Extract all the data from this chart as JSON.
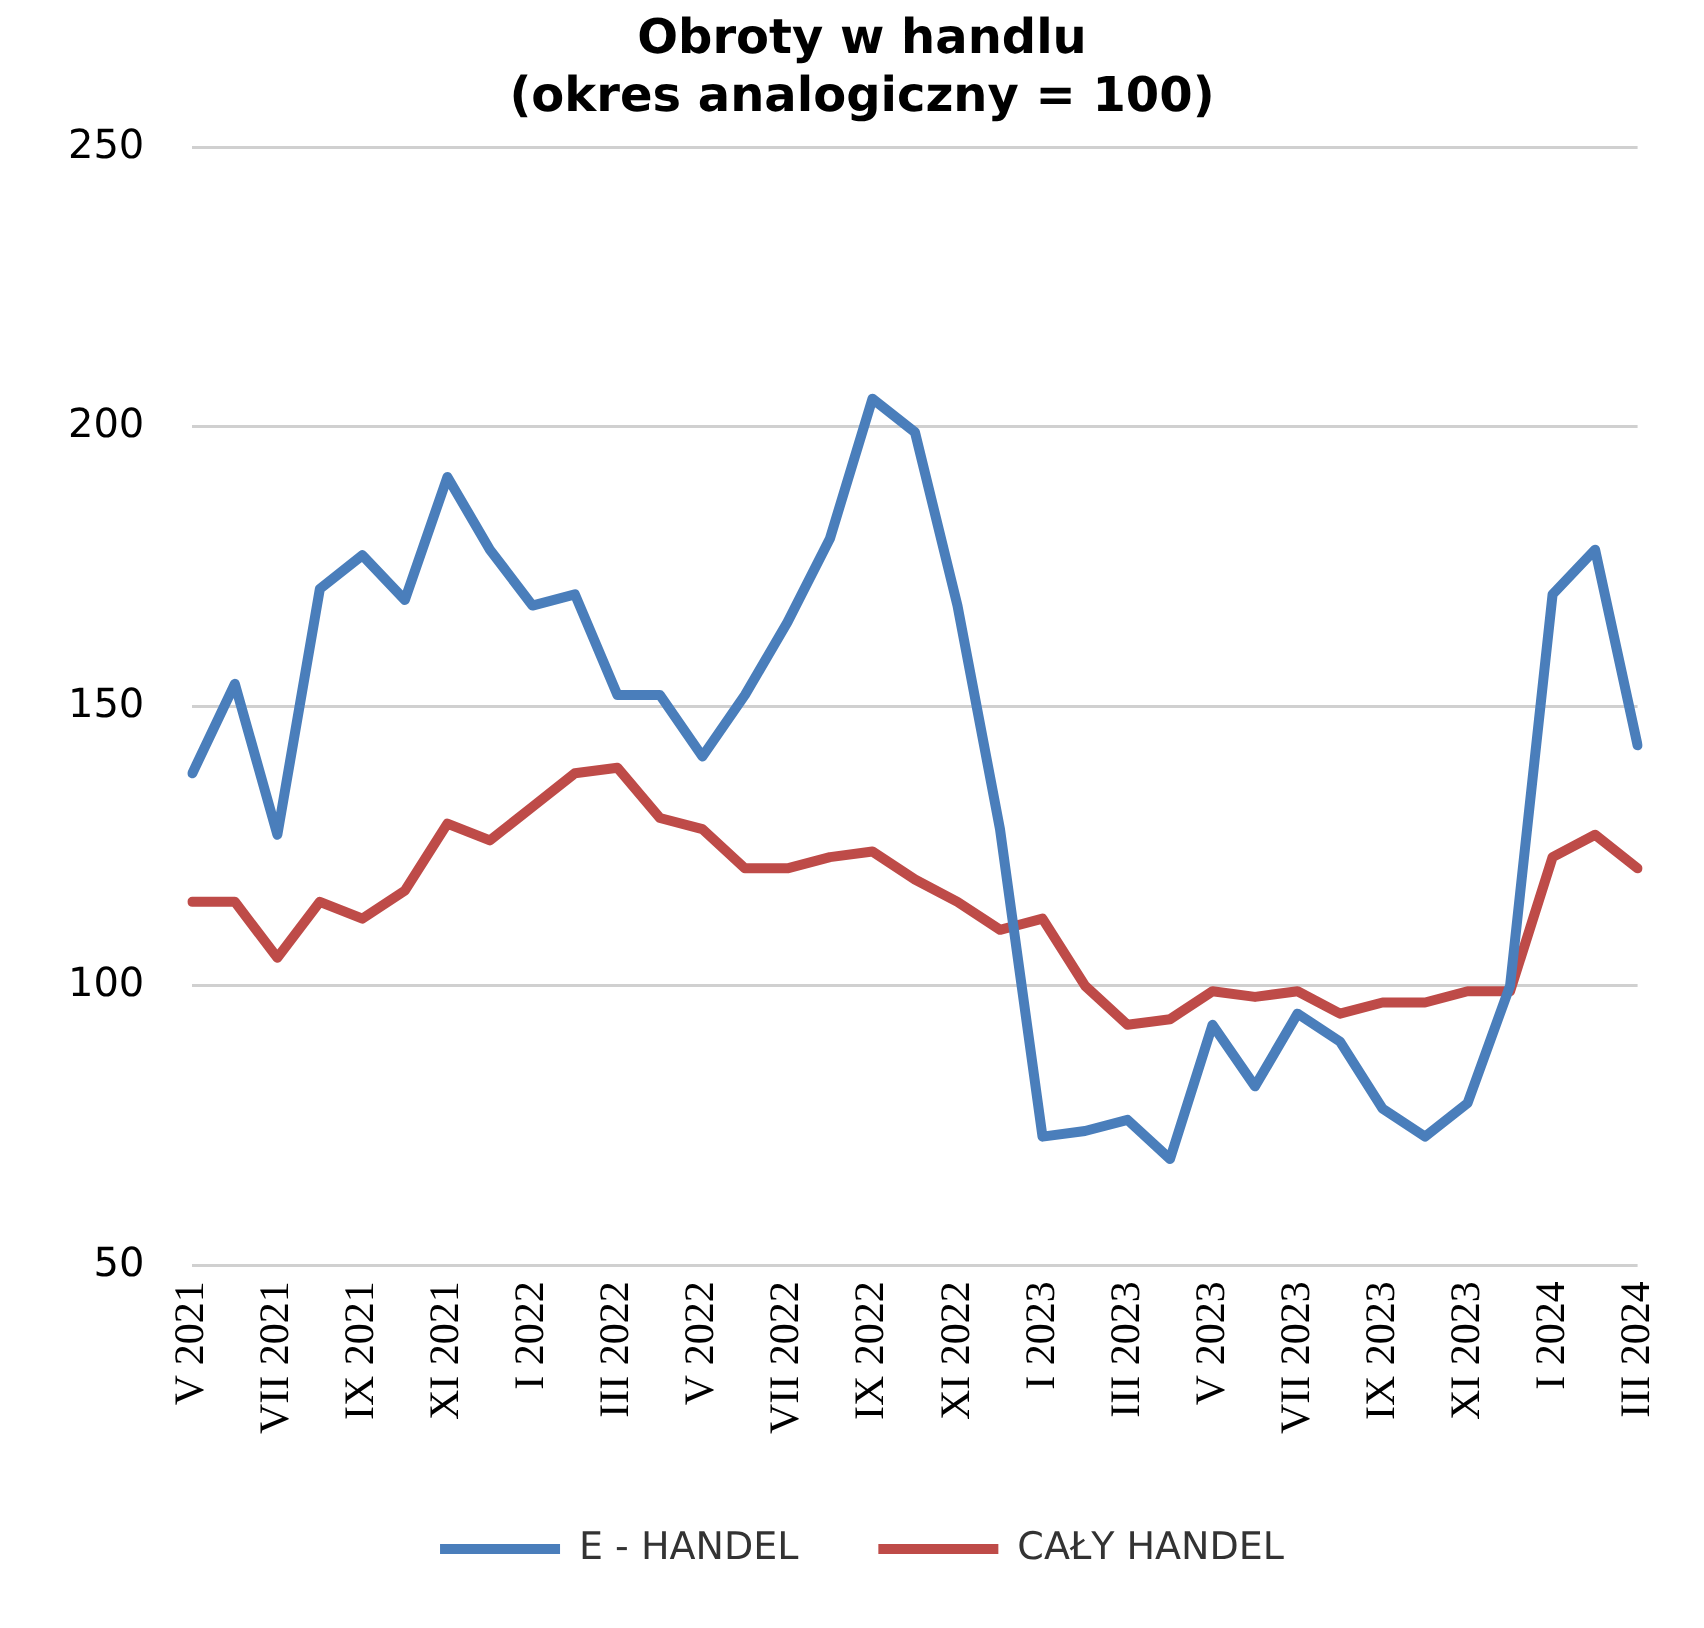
{
  "chart_data": {
    "type": "line",
    "title": "Obroty w handlu\n(okres analogiczny = 100)",
    "categories": [
      "V 2021",
      null,
      "VII 2021",
      null,
      "IX 2021",
      null,
      "XI 2021",
      null,
      "I 2022",
      null,
      "III 2022",
      null,
      "V 2022",
      null,
      "VII 2022",
      null,
      "IX 2022",
      null,
      "XI 2022",
      null,
      "I 2023",
      null,
      "III 2023",
      null,
      "V 2023",
      null,
      "VII 2023",
      null,
      "IX 2023",
      null,
      "XI 2023",
      null,
      "I 2024",
      null,
      "III 2024"
    ],
    "series": [
      {
        "name": "E - HANDEL",
        "color": "#4a7ebb",
        "values": [
          138,
          154,
          127,
          171,
          177,
          169,
          191,
          178,
          168,
          170,
          152,
          152,
          141,
          152,
          165,
          180,
          205,
          199,
          168,
          128,
          73,
          74,
          76,
          69,
          93,
          82,
          95,
          90,
          78,
          73,
          79,
          100,
          170,
          178,
          143
        ]
      },
      {
        "name": "CAŁY HANDEL",
        "color": "#be4b48",
        "values": [
          115,
          115,
          105,
          115,
          112,
          117,
          129,
          126,
          132,
          138,
          139,
          130,
          128,
          121,
          121,
          123,
          124,
          119,
          115,
          110,
          112,
          100,
          93,
          94,
          99,
          98,
          99,
          95,
          97,
          97,
          99,
          99,
          123,
          127,
          121
        ]
      }
    ],
    "ylim": [
      50,
      250
    ],
    "yticks": [
      50,
      100,
      150,
      200,
      250
    ],
    "grid": "y",
    "legend": "bottom",
    "marker": "none",
    "line_style": "solid"
  }
}
